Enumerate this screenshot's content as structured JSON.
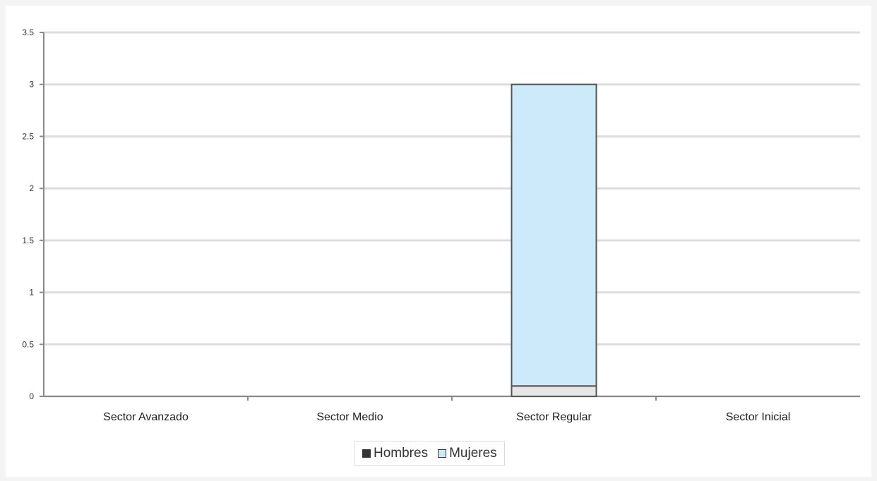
{
  "chart_data": {
    "type": "bar",
    "title": "",
    "xlabel": "",
    "ylabel": "",
    "categories": [
      "Sector Avanzado",
      "Sector Medio",
      "Sector Regular",
      "Sector Inicial"
    ],
    "series": [
      {
        "name": "Hombres",
        "values": [
          0,
          0,
          0.1,
          0
        ],
        "color": "#e6e6e6"
      },
      {
        "name": "Mujeres",
        "values": [
          0,
          0,
          2.9,
          0
        ],
        "color": "#cdeafb"
      }
    ],
    "stacked": true,
    "ylim": [
      0,
      3.5
    ],
    "yticks": [
      "0",
      "0.5",
      "1",
      "1.5",
      "2",
      "2.5",
      "3",
      "3.5"
    ],
    "grid": true,
    "legend_position": "bottom-center"
  }
}
